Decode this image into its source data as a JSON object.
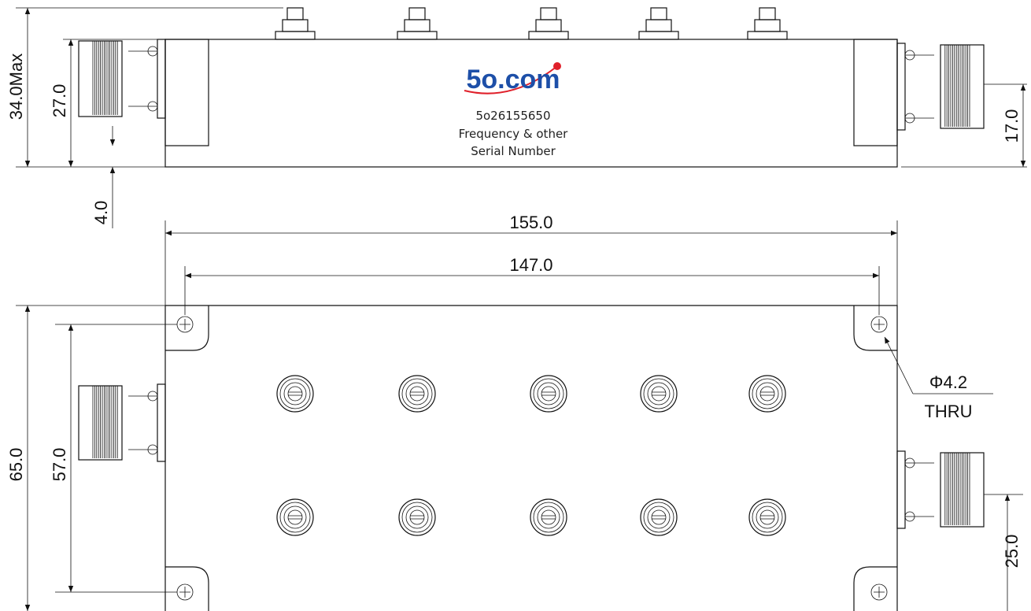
{
  "logo": "5o.com",
  "label": {
    "model": "5o26155650",
    "line1": "Frequency & other",
    "line2": "Serial Number"
  },
  "dimensions": {
    "height_max": "34.0Max",
    "body_height": "27.0",
    "gap": "4.0",
    "connector_height": "17.0",
    "length": "155.0",
    "hole_spacing_x": "147.0",
    "width": "65.0",
    "hole_spacing_y": "57.0",
    "connector_offset": "25.0",
    "hole_diameter": "Φ4.2",
    "hole_type": "THRU"
  }
}
